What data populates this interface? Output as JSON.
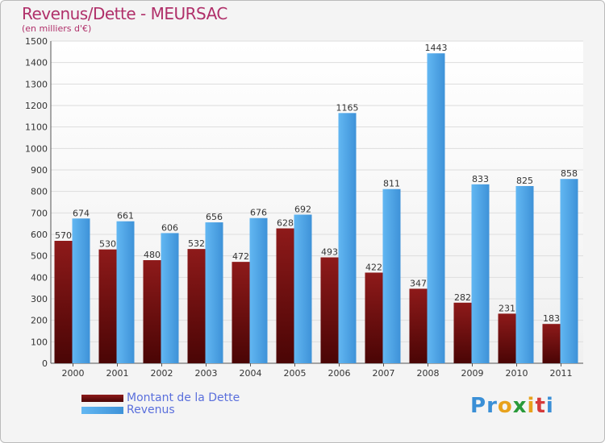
{
  "chart_data": {
    "type": "bar",
    "title": "Revenus/Dette - MEURSAC",
    "subtitle": "(en milliers d'€)",
    "categories": [
      "2000",
      "2001",
      "2002",
      "2003",
      "2004",
      "2005",
      "2006",
      "2007",
      "2008",
      "2009",
      "2010",
      "2011"
    ],
    "series": [
      {
        "name": "Montant de la Dette",
        "color": "#6b0d0d",
        "values": [
          570,
          530,
          480,
          532,
          472,
          628,
          493,
          422,
          347,
          282,
          231,
          183
        ]
      },
      {
        "name": "Revenus",
        "color": "#4aa3e6",
        "values": [
          674,
          661,
          606,
          656,
          676,
          692,
          1165,
          811,
          1443,
          833,
          825,
          858
        ]
      }
    ],
    "ylim": [
      0,
      1500
    ],
    "yticks": [
      0,
      100,
      200,
      300,
      400,
      500,
      600,
      700,
      800,
      900,
      1000,
      1100,
      1200,
      1300,
      1400,
      1500
    ],
    "grid": true,
    "legend_position": "bottom-left"
  },
  "logo": {
    "text": [
      "P",
      "r",
      "o",
      "x",
      "i",
      "t",
      "i"
    ],
    "colors": [
      "#3a8fd6",
      "#3a8fd6",
      "#e8a21c",
      "#2a9a3a",
      "#e8a21c",
      "#d63a3a",
      "#3a8fd6"
    ]
  }
}
